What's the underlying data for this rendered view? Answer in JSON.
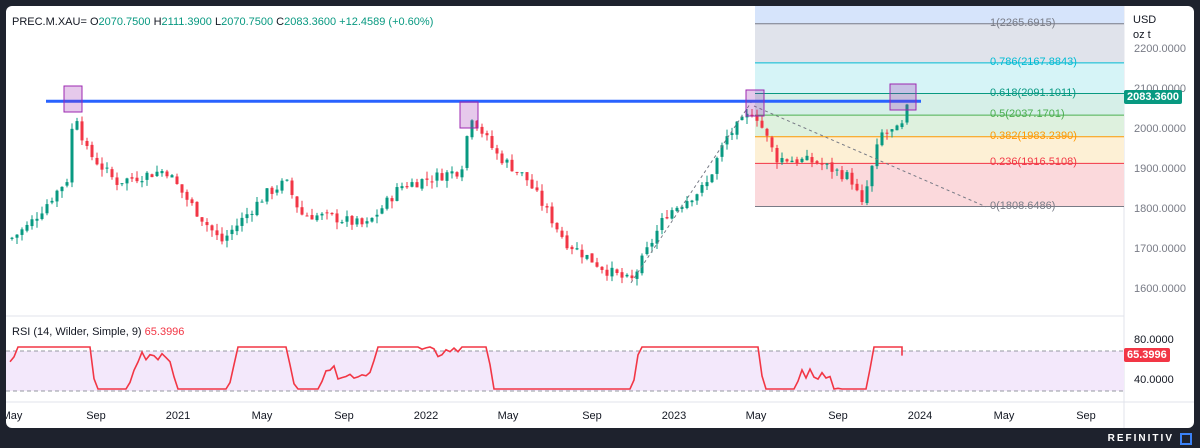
{
  "header": {
    "symbol": "PREC.M.XAU=",
    "open_label": "O",
    "open": "2070.7500",
    "high_label": "H",
    "high": "2111.3900",
    "low_label": "L",
    "low": "2070.7500",
    "close_label": "C",
    "close": "2083.3600",
    "change": "+12.4589 (+0.60%)"
  },
  "price_axis": {
    "unit": "USD",
    "unit2": "oz t",
    "ticks": [
      "2200.0000",
      "2100.0000",
      "2000.0000",
      "1900.0000",
      "1800.0000",
      "1700.0000",
      "1600.0000"
    ],
    "current_price": "2083.3600"
  },
  "fibonacci": {
    "levels": [
      {
        "label": "1(2265.6915)",
        "price": 2265.6915,
        "color": "#787b86",
        "fill": "#e0e3eb"
      },
      {
        "label": "0.786(2167.8843)",
        "price": 2167.8843,
        "color": "#00bcd4",
        "fill": "#d6f4f7"
      },
      {
        "label": "0.618(2091.1011)",
        "price": 2091.1011,
        "color": "#089981",
        "fill": "#d6efe8"
      },
      {
        "label": "0.5(2037.1701)",
        "price": 2037.1701,
        "color": "#4caf50",
        "fill": "#def1de"
      },
      {
        "label": "0.382(1983.2390)",
        "price": 1983.239,
        "color": "#ff9800",
        "fill": "#fdf0d5"
      },
      {
        "label": "0.236(1916.5108)",
        "price": 1916.5108,
        "color": "#f23645",
        "fill": "#fbd9dc"
      },
      {
        "label": "0(1808.6486)",
        "price": 1808.6486,
        "color": "#787b86",
        "fill": ""
      }
    ],
    "extension_fill": "#d6e4fb",
    "extension_top": 2290
  },
  "resistance_line": {
    "price": 2072,
    "color": "#2962ff"
  },
  "rsi": {
    "label": "RSI (14, Wilder, Simple, 9)",
    "value": "65.3996",
    "ticks": [
      "80.0000",
      "40.0000"
    ],
    "upper": 70,
    "lower": 30,
    "color": "#f23645"
  },
  "time_axis": [
    "May",
    "Sep",
    "2021",
    "May",
    "Sep",
    "2022",
    "May",
    "Sep",
    "2023",
    "May",
    "Sep",
    "2024",
    "May",
    "Sep"
  ],
  "colors": {
    "up": "#089981",
    "down": "#f23645",
    "accent": "#2962ff",
    "box": "#9c27b0"
  },
  "footer": {
    "brand": "REFINITIV"
  }
}
